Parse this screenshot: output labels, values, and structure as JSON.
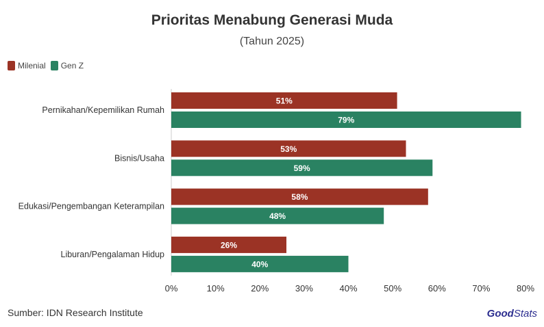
{
  "chart_data": {
    "type": "bar",
    "orientation": "horizontal",
    "title": "Prioritas Menabung Generasi Muda",
    "subtitle": "(Tahun 2025)",
    "categories": [
      "Pernikahan/Kepemilikan Rumah",
      "Bisnis/Usaha",
      "Edukasi/Pengembangan Keterampilan",
      "Liburan/Pengalaman Hidup"
    ],
    "series": [
      {
        "name": "Milenial",
        "color": "#9b3325",
        "values": [
          51,
          53,
          58,
          26
        ],
        "labels": [
          "51%",
          "53%",
          "58%",
          "26%"
        ]
      },
      {
        "name": "Gen Z",
        "color": "#2a8262",
        "values": [
          79,
          59,
          48,
          40
        ],
        "labels": [
          "79%",
          "59%",
          "48%",
          "40%"
        ]
      }
    ],
    "xlim": [
      0,
      80
    ],
    "xticks": [
      0,
      10,
      20,
      30,
      40,
      50,
      60,
      70,
      80
    ],
    "xtick_labels": [
      "0%",
      "10%",
      "20%",
      "30%",
      "40%",
      "50%",
      "60%",
      "70%",
      "80%"
    ],
    "xlabel": "",
    "ylabel": "",
    "legend_position": "top-left",
    "grid": false
  },
  "source": "Sumber: IDN Research Institute",
  "brand": {
    "good": "Good",
    "stats": "Stats"
  }
}
